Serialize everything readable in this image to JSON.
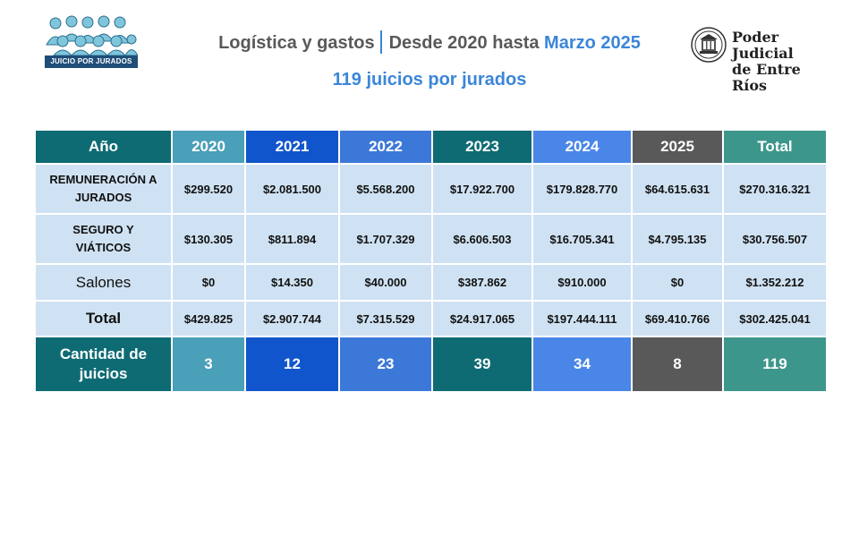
{
  "header": {
    "logo_left_text": "JUICIO POR JURADOS",
    "title_main": "Logística y gastos",
    "title_range": "Desde 2020 hasta",
    "title_accent": "Marzo 2025",
    "subtitle": "119 juicios por jurados",
    "logo_right_line1": "Poder Judicial",
    "logo_right_line2": "de Entre Ríos"
  },
  "table": {
    "corner_label": "Año",
    "columns": [
      {
        "label": "2020",
        "color": "#4a9fb9"
      },
      {
        "label": "2021",
        "color": "#1155cc"
      },
      {
        "label": "2022",
        "color": "#3c78d8"
      },
      {
        "label": "2023",
        "color": "#0e6b73"
      },
      {
        "label": "2024",
        "color": "#4a86e8"
      },
      {
        "label": "2025",
        "color": "#595959"
      },
      {
        "label": "Total",
        "color": "#3d968b"
      }
    ],
    "header_first_color": "#0e6b73",
    "rows": [
      {
        "label_1": "REMUNERACIÓN A",
        "label_2": "JURADOS",
        "values": [
          "$299.520",
          "$2.081.500",
          "$5.568.200",
          "$17.922.700",
          "$179.828.770",
          "$64.615.631",
          "$270.316.321"
        ]
      },
      {
        "label_1": "SEGURO Y",
        "label_2": "VIÁTICOS",
        "values": [
          "$130.305",
          "$811.894",
          "$1.707.329",
          "$6.606.503",
          "$16.705.341",
          "$4.795.135",
          "$30.756.507"
        ]
      },
      {
        "label": "Salones",
        "values": [
          "$0",
          "$14.350",
          "$40.000",
          "$387.862",
          "$910.000",
          "$0",
          "$1.352.212"
        ]
      },
      {
        "label": "Total",
        "values": [
          "$429.825",
          "$2.907.744",
          "$7.315.529",
          "$24.917.065",
          "$197.444.111",
          "$69.410.766",
          "$302.425.041"
        ]
      }
    ],
    "count_row": {
      "label_1": "Cantidad de",
      "label_2": "juicios",
      "values": [
        "3",
        "12",
        "23",
        "39",
        "34",
        "8",
        "119"
      ]
    }
  }
}
